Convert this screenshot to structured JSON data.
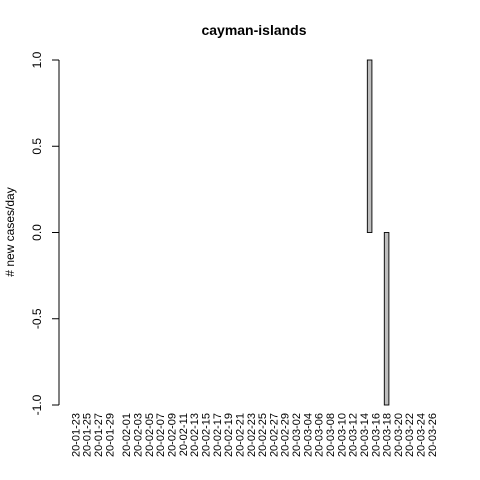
{
  "chart_data": {
    "type": "bar",
    "title": "cayman-islands",
    "ylabel": "# new cases/day",
    "xlabel": "",
    "ylim": [
      -1.0,
      1.0
    ],
    "y_ticks": [
      "-1.0",
      "-0.5",
      "0.0",
      "0.5",
      "1.0"
    ],
    "x_tick_labels": [
      "20-01-23",
      "20-01-25",
      "20-01-27",
      "20-01-29",
      "20-02-01",
      "20-02-03",
      "20-02-05",
      "20-02-07",
      "20-02-09",
      "20-02-11",
      "20-02-13",
      "20-02-15",
      "20-02-17",
      "20-02-19",
      "20-02-21",
      "20-02-23",
      "20-02-25",
      "20-02-27",
      "20-02-29",
      "20-03-02",
      "20-03-04",
      "20-03-06",
      "20-03-08",
      "20-03-10",
      "20-03-12",
      "20-03-14",
      "20-03-16",
      "20-03-18",
      "20-03-20",
      "20-03-22",
      "20-03-24",
      "20-03-26"
    ],
    "categories": [
      "20-01-23",
      "20-01-24",
      "20-01-25",
      "20-01-26",
      "20-01-27",
      "20-01-28",
      "20-01-29",
      "20-01-30",
      "20-01-31",
      "20-02-01",
      "20-02-02",
      "20-02-03",
      "20-02-04",
      "20-02-05",
      "20-02-06",
      "20-02-07",
      "20-02-08",
      "20-02-09",
      "20-02-10",
      "20-02-11",
      "20-02-12",
      "20-02-13",
      "20-02-14",
      "20-02-15",
      "20-02-16",
      "20-02-17",
      "20-02-18",
      "20-02-19",
      "20-02-20",
      "20-02-21",
      "20-02-22",
      "20-02-23",
      "20-02-24",
      "20-02-25",
      "20-02-26",
      "20-02-27",
      "20-02-28",
      "20-02-29",
      "20-03-01",
      "20-03-02",
      "20-03-03",
      "20-03-04",
      "20-03-05",
      "20-03-06",
      "20-03-07",
      "20-03-08",
      "20-03-09",
      "20-03-10",
      "20-03-11",
      "20-03-12",
      "20-03-13",
      "20-03-14",
      "20-03-15",
      "20-03-16",
      "20-03-17",
      "20-03-18",
      "20-03-19",
      "20-03-20",
      "20-03-21",
      "20-03-22",
      "20-03-23",
      "20-03-24",
      "20-03-25",
      "20-03-26",
      "20-03-27"
    ],
    "values": [
      0,
      0,
      0,
      0,
      0,
      0,
      0,
      0,
      0,
      0,
      0,
      0,
      0,
      0,
      0,
      0,
      0,
      0,
      0,
      0,
      0,
      0,
      0,
      0,
      0,
      0,
      0,
      0,
      0,
      0,
      0,
      0,
      0,
      0,
      0,
      0,
      0,
      0,
      0,
      0,
      0,
      0,
      0,
      0,
      0,
      0,
      0,
      0,
      0,
      0,
      0,
      0,
      1,
      0,
      0,
      -1,
      0,
      0,
      0,
      0,
      0,
      0,
      0,
      0,
      0
    ],
    "bar_color": "#bebebe",
    "grid": false
  }
}
